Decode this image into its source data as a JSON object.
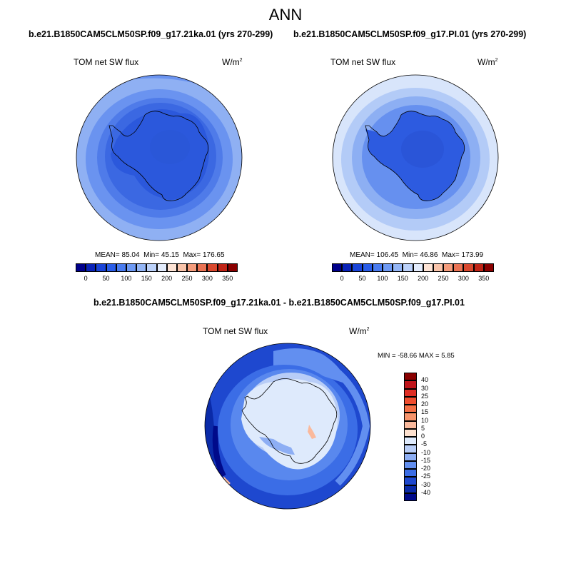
{
  "title": "ANN",
  "panels": [
    {
      "case": "b.e21.B1850CAM5CLM50SP.f09_g17.21ka.01 (yrs 270-299)",
      "variable": "TOM net SW flux",
      "units": "W/m",
      "units_sup": "2",
      "stats": {
        "mean_label": "MEAN=",
        "mean": "85.04",
        "min_label": "Min=",
        "min": "45.15",
        "max_label": "Max=",
        "max": "176.65"
      }
    },
    {
      "case": "b.e21.B1850CAM5CLM50SP.f09_g17.PI.01 (yrs 270-299)",
      "variable": "TOM net SW flux",
      "units": "W/m",
      "units_sup": "2",
      "stats": {
        "mean_label": "MEAN=",
        "mean": "106.45",
        "min_label": "Min=",
        "min": "46.86",
        "max_label": "Max=",
        "max": "173.99"
      }
    }
  ],
  "diff_panel": {
    "case": "b.e21.B1850CAM5CLM50SP.f09_g17.21ka.01 - b.e21.B1850CAM5CLM50SP.f09_g17.PI.01",
    "variable": "TOM net SW flux",
    "units": "W/m",
    "units_sup": "2",
    "stats_text": "MIN = -58.66 MAX =   5.85"
  },
  "abs_colorbar": {
    "labels": [
      "0",
      "50",
      "100",
      "150",
      "200",
      "250",
      "300",
      "350"
    ],
    "colors": [
      "#00008a",
      "#0a23b8",
      "#1a44d8",
      "#2a5de8",
      "#4a7cf0",
      "#6e9af4",
      "#94b6f6",
      "#bcd2fa",
      "#e3ecfc",
      "#fde3d4",
      "#f9c4aa",
      "#f49c7c",
      "#ea7354",
      "#d9482e",
      "#c02416",
      "#8a0000"
    ]
  },
  "diff_colorbar": {
    "labels": [
      "40",
      "30",
      "25",
      "20",
      "15",
      "10",
      "5",
      "0",
      "-5",
      "-10",
      "-15",
      "-20",
      "-25",
      "-30",
      "-40"
    ],
    "colors": [
      "#8a0000",
      "#c0141a",
      "#df2d23",
      "#ef4d2e",
      "#f46f45",
      "#f7946b",
      "#fab99c",
      "#fde1cf",
      "#deeafc",
      "#b8cdf7",
      "#8daef4",
      "#628ff0",
      "#3b6de6",
      "#1e48cf",
      "#0a2aa8",
      "#000a8a"
    ]
  }
}
